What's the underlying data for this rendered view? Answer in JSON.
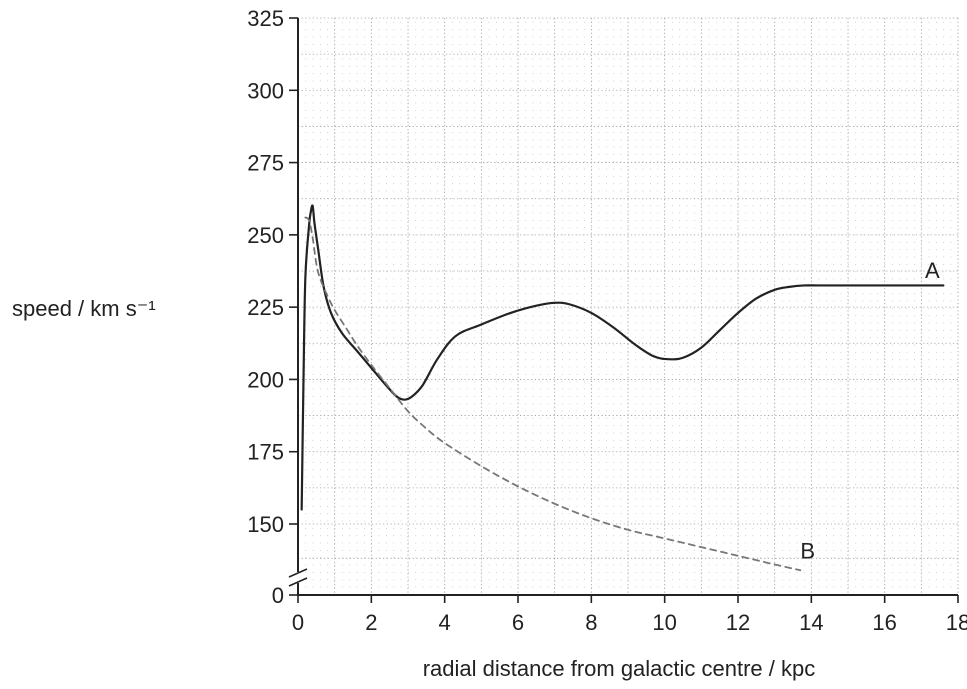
{
  "chart_data": {
    "type": "line",
    "xlabel": "radial distance from galactic centre / kpc",
    "ylabel": "speed / km s⁻¹",
    "xlim": [
      0,
      18
    ],
    "ylim": [
      150,
      325
    ],
    "y_axis_break": true,
    "y_origin_label": "0",
    "x_ticks": [
      0,
      2,
      4,
      6,
      8,
      10,
      12,
      14,
      16,
      18
    ],
    "y_ticks": [
      150,
      175,
      200,
      225,
      250,
      275,
      300,
      325
    ],
    "grid": "dotted",
    "series": [
      {
        "name": "A",
        "style": "solid",
        "color": "#222222",
        "x": [
          0.1,
          0.15,
          0.2,
          0.3,
          0.35,
          0.4,
          0.45,
          0.55,
          0.7,
          0.9,
          1.2,
          1.6,
          2.0,
          2.4,
          2.7,
          2.9,
          3.1,
          3.4,
          3.8,
          4.3,
          5.0,
          5.8,
          6.5,
          7.0,
          7.4,
          8.0,
          8.6,
          9.2,
          9.7,
          10.1,
          10.5,
          11.0,
          11.5,
          12.0,
          12.5,
          13.0,
          13.4,
          13.8,
          14.2,
          15.0,
          16.0,
          17.0,
          17.6
        ],
        "y": [
          155,
          200,
          235,
          253,
          258,
          260,
          254,
          245,
          232,
          223,
          216,
          210,
          204,
          198,
          194,
          193,
          194,
          198,
          207,
          215,
          219,
          223,
          225.5,
          226.5,
          226,
          223,
          218,
          212,
          208,
          207,
          207.5,
          211,
          217,
          223,
          228,
          231,
          232,
          232.5,
          232.5,
          232.5,
          232.5,
          232.5,
          232.5
        ]
      },
      {
        "name": "B",
        "style": "dashed",
        "color": "#777777",
        "x": [
          0.2,
          0.3,
          0.4,
          0.5,
          0.6,
          0.8,
          1.0,
          1.3,
          1.6,
          2.0,
          2.5,
          3.0,
          3.5,
          4.0,
          5.0,
          6.0,
          7.0,
          8.0,
          9.0,
          10.0,
          11.0,
          12.0,
          13.0,
          13.7
        ],
        "y": [
          256,
          255,
          249,
          240,
          235,
          229,
          224,
          218,
          212,
          205,
          197,
          189,
          183,
          178,
          170,
          163,
          157,
          152,
          148,
          145,
          142,
          139,
          136,
          134
        ]
      }
    ],
    "annotations": [
      {
        "text": "A",
        "x": 17.1,
        "y": 235
      },
      {
        "text": "B",
        "x": 13.7,
        "y": 138
      }
    ]
  }
}
